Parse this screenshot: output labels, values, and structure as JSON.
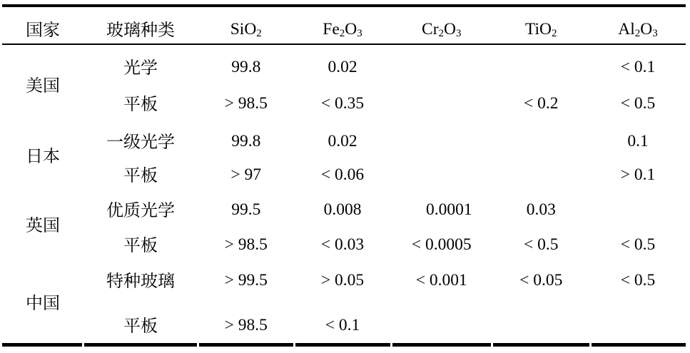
{
  "page": {
    "background": "#ffffff",
    "text_color": "#000000",
    "rule_color": "#000000"
  },
  "table": {
    "columns": [
      "国家",
      "玻璃种类",
      "SiO2",
      "Fe2O3",
      "Cr2O3",
      "TiO2",
      "Al2O3"
    ],
    "countries": [
      {
        "name": "美国",
        "rows": [
          {
            "type": "光学",
            "values": [
              "99.8",
              "0.02",
              "",
              "",
              "< 0.1"
            ]
          },
          {
            "type": "平板",
            "values": [
              "> 98.5",
              "< 0.35",
              "",
              "< 0.2",
              "< 0.5"
            ]
          }
        ]
      },
      {
        "name": "日本",
        "rows": [
          {
            "type": "一级光学",
            "values": [
              "99.8",
              "0.02",
              "",
              "",
              "0.1"
            ]
          },
          {
            "type": "平板",
            "values": [
              "> 97",
              "< 0.06",
              "",
              "",
              "> 0.1"
            ]
          }
        ]
      },
      {
        "name": "英国",
        "rows": [
          {
            "type": "优质光学",
            "values": [
              "99.5",
              "0.008",
              "0.0001",
              "0.03",
              ""
            ]
          },
          {
            "type": "平板",
            "values": [
              "> 98.5",
              "< 0.03",
              "< 0.0005",
              "< 0.5",
              "< 0.5"
            ]
          }
        ]
      },
      {
        "name": "中国",
        "rows": [
          {
            "type": "特种玻璃",
            "values": [
              "> 99.5",
              "> 0.05",
              "< 0.001",
              "< 0.05",
              "< 0.5"
            ]
          },
          {
            "type": "平板",
            "values": [
              "> 98.5",
              "< 0.1",
              "",
              "",
              ""
            ]
          }
        ]
      }
    ]
  }
}
